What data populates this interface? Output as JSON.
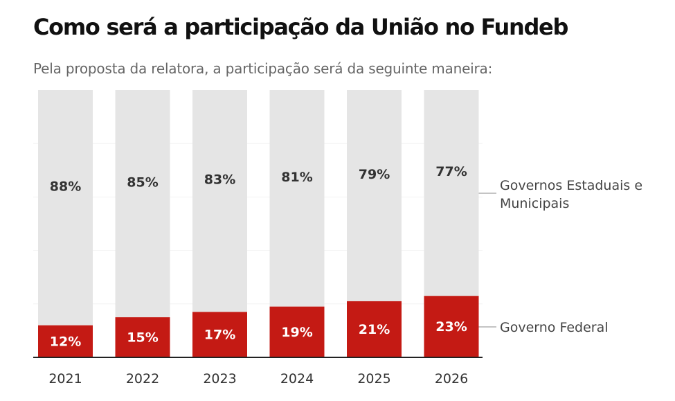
{
  "header": {
    "title": "Como será a participação da União no Fundeb",
    "subtitle": "Pela proposta da relatora, a participação será da seguinte maneira:"
  },
  "chart_data": {
    "type": "bar",
    "stacked": true,
    "categories": [
      "2021",
      "2022",
      "2023",
      "2024",
      "2025",
      "2026"
    ],
    "series": [
      {
        "name": "Governo Federal",
        "values": [
          12,
          15,
          17,
          19,
          21,
          23
        ],
        "labels": [
          "12%",
          "15%",
          "17%",
          "19%",
          "21%",
          "23%"
        ],
        "color": "#c41a14"
      },
      {
        "name": "Governos Estaduais e Municipais",
        "name_lines": [
          "Governos Estaduais e",
          "Municipais"
        ],
        "values": [
          88,
          85,
          83,
          81,
          79,
          77
        ],
        "labels": [
          "88%",
          "85%",
          "83%",
          "81%",
          "79%",
          "77%"
        ],
        "color": "#e5e5e5"
      }
    ],
    "ylim": [
      0,
      100
    ],
    "grid": true,
    "legend": "right, inline labels",
    "colors": {
      "label_on_red": "#ffffff",
      "label_on_grey": "#333333",
      "axis": "#222222",
      "grid": "#f2f2f2"
    }
  }
}
